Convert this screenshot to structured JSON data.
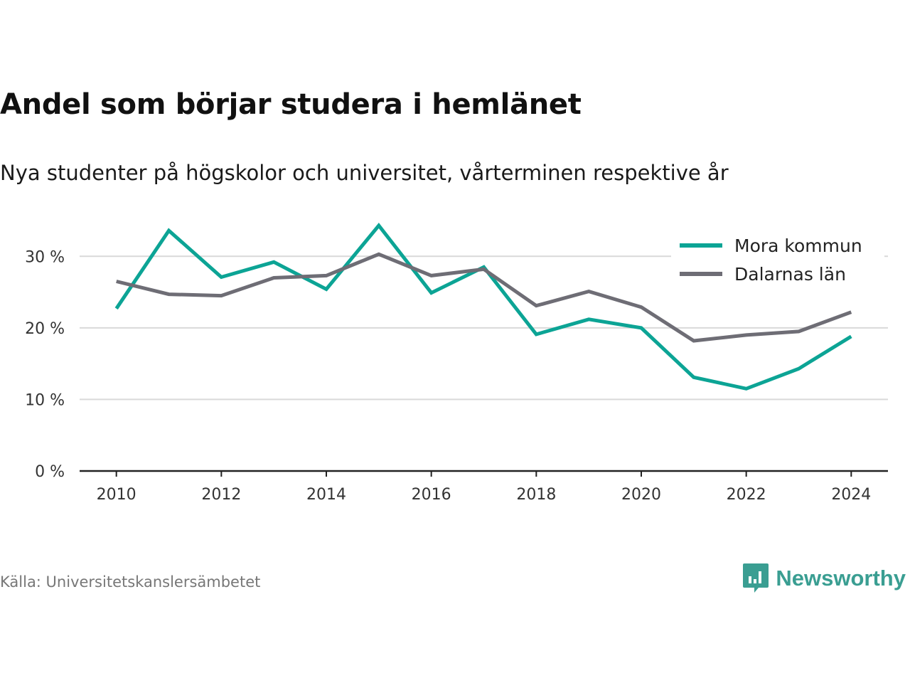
{
  "title": "Andel som börjar studera i hemlänet",
  "subtitle": "Nya studenter på högskolor och universitet, vårterminen respektive år",
  "source": "Källa: Universitetskanslersämbetet",
  "brand": {
    "name": "Newsworthy",
    "icon": "newsworthy-logo-icon",
    "color": "#3a9e92"
  },
  "chart_data": {
    "type": "line",
    "x": [
      2010,
      2011,
      2012,
      2013,
      2014,
      2015,
      2016,
      2017,
      2018,
      2019,
      2020,
      2021,
      2022,
      2023,
      2024
    ],
    "xticks": [
      2010,
      2012,
      2014,
      2016,
      2018,
      2020,
      2022,
      2024
    ],
    "xtick_labels": [
      "2010",
      "2012",
      "2014",
      "2016",
      "2018",
      "2020",
      "2022",
      "2024"
    ],
    "xlim": [
      2009.3,
      2024.7
    ],
    "ylim": [
      0,
      35
    ],
    "yticks": [
      0,
      10,
      20,
      30
    ],
    "ytick_labels": [
      "0 %",
      "10 %",
      "20 %",
      "30 %"
    ],
    "grid": true,
    "legend_position": "top-right",
    "series": [
      {
        "name": "Mora kommun",
        "color": "#0ca495",
        "values": [
          22.7,
          33.6,
          27.1,
          29.2,
          25.4,
          34.3,
          24.9,
          28.5,
          19.1,
          21.2,
          20.0,
          13.1,
          11.5,
          14.3,
          18.8
        ]
      },
      {
        "name": "Dalarnas län",
        "color": "#6e6d75",
        "values": [
          26.5,
          24.7,
          24.5,
          27.0,
          27.3,
          30.3,
          27.3,
          28.2,
          23.1,
          25.1,
          22.9,
          18.2,
          19.0,
          19.5,
          22.2
        ]
      }
    ]
  }
}
